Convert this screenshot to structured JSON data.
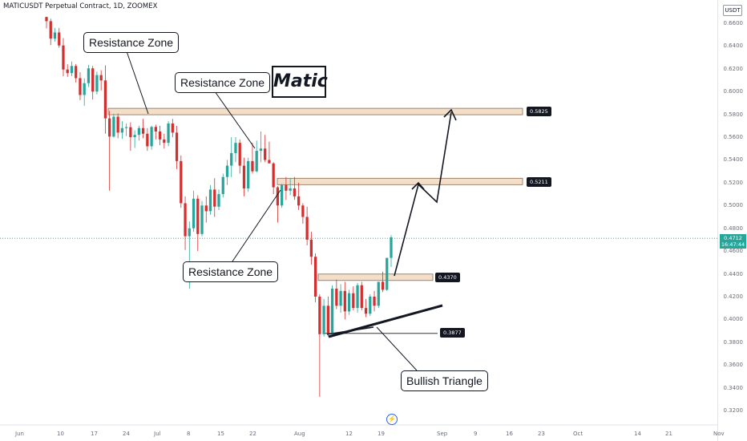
{
  "header": {
    "title": "MATICUSDT Perpetual Contract, 1D, ZOOMEX"
  },
  "currency_badge": "USDT",
  "annotations": {
    "matic_label": "Matic",
    "resistance_1": "Resistance Zone",
    "resistance_2": "Resistance Zone",
    "resistance_3": "Resistance Zone",
    "bullish_triangle": "Bullish Triangle"
  },
  "levels": [
    {
      "label": "0.5825",
      "value": 0.5825
    },
    {
      "label": "0.5211",
      "value": 0.5211
    },
    {
      "label": "0.4370",
      "value": 0.437
    },
    {
      "label": "0.3877",
      "value": 0.3877
    }
  ],
  "current_price": {
    "value": "0.4712",
    "countdown": "16:47:44"
  },
  "colors": {
    "up": "#26a69a",
    "down": "#d32f2f",
    "zone_fill": "#f3dfc9",
    "zone_border": "#8a6b4f",
    "current_line": "#26a69a"
  },
  "chart_data": {
    "type": "candlestick",
    "title": "MATICUSDT Perpetual Contract, 1D, ZOOMEX",
    "x_ticks": [
      "Jun",
      "10",
      "17",
      "24",
      "Jul",
      "8",
      "15",
      "22",
      "Aug",
      "12",
      "19",
      "Sep",
      "9",
      "16",
      "23",
      "Oct",
      "14",
      "21",
      "Nov"
    ],
    "y_ticks": [
      "0.6600",
      "0.6400",
      "0.6200",
      "0.6000",
      "0.5800",
      "0.5600",
      "0.5400",
      "0.5200",
      "0.5000",
      "0.4800",
      "0.4600",
      "0.4400",
      "0.4200",
      "0.4000",
      "0.3800",
      "0.3600",
      "0.3400",
      "0.3200"
    ],
    "ylim": [
      0.31,
      0.67
    ],
    "grid": false,
    "candles": [
      [
        0.6655,
        0.6658,
        0.6555,
        0.6618
      ],
      [
        0.6618,
        0.664,
        0.6408,
        0.6465
      ],
      [
        0.6465,
        0.6558,
        0.6437,
        0.6519
      ],
      [
        0.6519,
        0.6558,
        0.6385,
        0.6405
      ],
      [
        0.6405,
        0.647,
        0.6135,
        0.6194
      ],
      [
        0.6194,
        0.624,
        0.613,
        0.6162
      ],
      [
        0.6162,
        0.6265,
        0.6135,
        0.6225
      ],
      [
        0.6225,
        0.6242,
        0.608,
        0.6118
      ],
      [
        0.6118,
        0.617,
        0.5925,
        0.597
      ],
      [
        0.597,
        0.6118,
        0.5875,
        0.6074
      ],
      [
        0.6074,
        0.6235,
        0.604,
        0.6204
      ],
      [
        0.6204,
        0.6225,
        0.593,
        0.6
      ],
      [
        0.6,
        0.6175,
        0.5975,
        0.6145
      ],
      [
        0.6145,
        0.6188,
        0.601,
        0.6098
      ],
      [
        0.6098,
        0.623,
        0.563,
        0.5765
      ],
      [
        0.5765,
        0.583,
        0.513,
        0.5605
      ],
      [
        0.5605,
        0.5805,
        0.5595,
        0.578
      ],
      [
        0.578,
        0.5808,
        0.559,
        0.564
      ],
      [
        0.564,
        0.574,
        0.5585,
        0.568
      ],
      [
        0.568,
        0.572,
        0.561,
        0.5688
      ],
      [
        0.5688,
        0.573,
        0.548,
        0.56
      ],
      [
        0.56,
        0.566,
        0.5505,
        0.562
      ],
      [
        0.562,
        0.57,
        0.557,
        0.568
      ],
      [
        0.568,
        0.576,
        0.559,
        0.563
      ],
      [
        0.563,
        0.568,
        0.548,
        0.552
      ],
      [
        0.552,
        0.57,
        0.549,
        0.569
      ],
      [
        0.569,
        0.571,
        0.558,
        0.565
      ],
      [
        0.565,
        0.57,
        0.553,
        0.558
      ],
      [
        0.558,
        0.563,
        0.55,
        0.555
      ],
      [
        0.555,
        0.574,
        0.552,
        0.572
      ],
      [
        0.572,
        0.576,
        0.56,
        0.564
      ],
      [
        0.564,
        0.57,
        0.532,
        0.539
      ],
      [
        0.539,
        0.544,
        0.498,
        0.502
      ],
      [
        0.502,
        0.508,
        0.461,
        0.473
      ],
      [
        0.473,
        0.486,
        0.427,
        0.48
      ],
      [
        0.48,
        0.513,
        0.477,
        0.506
      ],
      [
        0.506,
        0.509,
        0.46,
        0.475
      ],
      [
        0.475,
        0.504,
        0.473,
        0.5
      ],
      [
        0.5,
        0.508,
        0.485,
        0.495
      ],
      [
        0.495,
        0.518,
        0.492,
        0.514
      ],
      [
        0.514,
        0.524,
        0.49,
        0.499
      ],
      [
        0.499,
        0.514,
        0.496,
        0.51
      ],
      [
        0.51,
        0.528,
        0.507,
        0.525
      ],
      [
        0.525,
        0.54,
        0.518,
        0.535
      ],
      [
        0.535,
        0.56,
        0.525,
        0.546
      ],
      [
        0.546,
        0.56,
        0.538,
        0.555
      ],
      [
        0.555,
        0.558,
        0.528,
        0.535
      ],
      [
        0.535,
        0.542,
        0.508,
        0.515
      ],
      [
        0.515,
        0.542,
        0.512,
        0.539
      ],
      [
        0.539,
        0.555,
        0.528,
        0.53
      ],
      [
        0.53,
        0.557,
        0.529,
        0.548
      ],
      [
        0.548,
        0.565,
        0.538,
        0.55
      ],
      [
        0.55,
        0.562,
        0.538,
        0.54
      ],
      [
        0.54,
        0.556,
        0.537,
        0.537
      ],
      [
        0.537,
        0.538,
        0.51,
        0.516
      ],
      [
        0.516,
        0.517,
        0.485,
        0.5
      ],
      [
        0.5,
        0.519,
        0.498,
        0.518
      ],
      [
        0.518,
        0.525,
        0.505,
        0.513
      ],
      [
        0.513,
        0.524,
        0.509,
        0.515
      ],
      [
        0.515,
        0.525,
        0.505,
        0.508
      ],
      [
        0.508,
        0.52,
        0.496,
        0.5
      ],
      [
        0.5,
        0.502,
        0.484,
        0.49
      ],
      [
        0.49,
        0.499,
        0.465,
        0.47
      ],
      [
        0.47,
        0.477,
        0.448,
        0.455
      ],
      [
        0.455,
        0.458,
        0.415,
        0.42
      ],
      [
        0.42,
        0.422,
        0.332,
        0.387
      ],
      [
        0.387,
        0.418,
        0.385,
        0.412
      ],
      [
        0.412,
        0.42,
        0.385,
        0.388
      ],
      [
        0.388,
        0.43,
        0.387,
        0.427
      ],
      [
        0.427,
        0.435,
        0.409,
        0.412
      ],
      [
        0.412,
        0.431,
        0.406,
        0.425
      ],
      [
        0.425,
        0.433,
        0.4,
        0.407
      ],
      [
        0.407,
        0.426,
        0.404,
        0.423
      ],
      [
        0.423,
        0.429,
        0.408,
        0.41
      ],
      [
        0.41,
        0.432,
        0.406,
        0.43
      ],
      [
        0.43,
        0.433,
        0.408,
        0.41
      ],
      [
        0.41,
        0.418,
        0.402,
        0.405
      ],
      [
        0.405,
        0.422,
        0.403,
        0.42
      ],
      [
        0.42,
        0.425,
        0.407,
        0.412
      ],
      [
        0.412,
        0.433,
        0.41,
        0.433
      ],
      [
        0.433,
        0.442,
        0.424,
        0.426
      ],
      [
        0.426,
        0.454,
        0.425,
        0.454
      ],
      [
        0.454,
        0.474,
        0.446,
        0.472
      ]
    ]
  }
}
